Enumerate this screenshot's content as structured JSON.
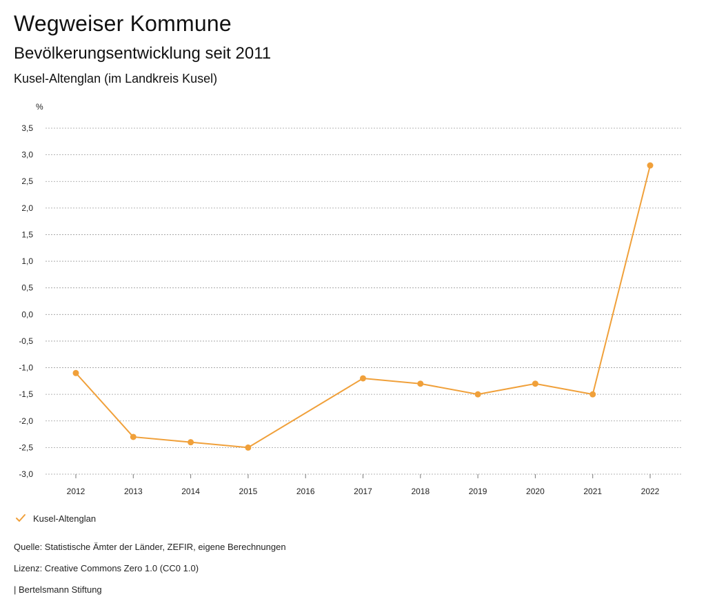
{
  "header": {
    "title": "Wegweiser Kommune",
    "subtitle": "Bevölkerungsentwicklung seit 2011",
    "region": "Kusel-Altenglan (im Landkreis Kusel)"
  },
  "chart_data": {
    "type": "line",
    "ylabel": "%",
    "x": [
      "2012",
      "2013",
      "2014",
      "2015",
      "2016",
      "2017",
      "2018",
      "2019",
      "2020",
      "2021",
      "2022"
    ],
    "series": [
      {
        "name": "Kusel-Altenglan",
        "color": "#f0a03a",
        "points": [
          {
            "x": "2012",
            "y": -1.1
          },
          {
            "x": "2013",
            "y": -2.3
          },
          {
            "x": "2014",
            "y": -2.4
          },
          {
            "x": "2015",
            "y": -2.5
          },
          {
            "x": "2017",
            "y": -1.2
          },
          {
            "x": "2018",
            "y": -1.3
          },
          {
            "x": "2019",
            "y": -1.5
          },
          {
            "x": "2020",
            "y": -1.3
          },
          {
            "x": "2021",
            "y": -1.5
          },
          {
            "x": "2022",
            "y": 2.8
          }
        ]
      }
    ],
    "yticks": [
      3.5,
      3.0,
      2.5,
      2.0,
      1.5,
      1.0,
      0.5,
      0.0,
      -0.5,
      -1.0,
      -1.5,
      -2.0,
      -2.5,
      -3.0
    ],
    "ytick_labels": [
      "3,5",
      "3,0",
      "2,5",
      "2,0",
      "1,5",
      "1,0",
      "0,5",
      "0,0",
      "-0,5",
      "-1,0",
      "-1,5",
      "-2,0",
      "-2,5",
      "-3,0"
    ],
    "ylim": [
      -3.0,
      3.5
    ],
    "grid": true,
    "legend_position": "bottom-left"
  },
  "legend": {
    "label": "Kusel-Altenglan",
    "icon": "check-icon"
  },
  "footer": {
    "source": "Quelle: Statistische Ämter der Länder, ZEFIR, eigene Berechnungen",
    "license": "Lizenz: Creative Commons Zero 1.0 (CC0 1.0)",
    "org": "| Bertelsmann Stiftung"
  }
}
